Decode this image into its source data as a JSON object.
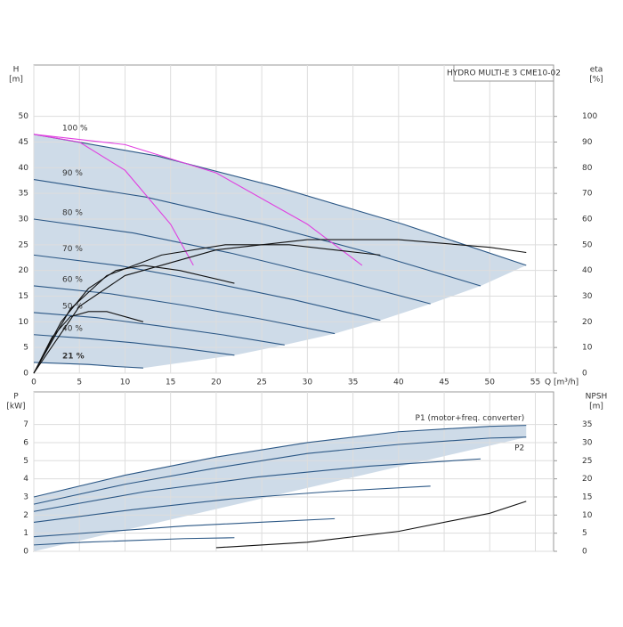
{
  "chart_data": [
    {
      "type": "line",
      "title": "HYDRO MULTI-E 3 CME10-02",
      "ylabel": "H",
      "yunit": "[m]",
      "y2label": "eta",
      "y2unit": "[%]",
      "xlabel": "Q [m³/h]",
      "xlim": [
        0,
        57
      ],
      "xticks": [
        0,
        5,
        10,
        15,
        20,
        25,
        30,
        35,
        40,
        45,
        50,
        55
      ],
      "ylim": [
        0,
        60
      ],
      "yticks": [
        0,
        5,
        10,
        15,
        20,
        25,
        30,
        35,
        40,
        45,
        50
      ],
      "y2lim": [
        0,
        120
      ],
      "y2ticks": [
        0,
        10,
        20,
        30,
        40,
        50,
        60,
        70,
        80,
        90,
        100
      ],
      "grid": true,
      "shade": "#c9d7e5",
      "series": [
        {
          "name": "100 %",
          "color": "#2b5785",
          "x": [
            0,
            13.5,
            27,
            40.5,
            54
          ],
          "values": [
            46.5,
            42.3,
            36.1,
            29.0,
            21
          ]
        },
        {
          "name": "90 %",
          "color": "#2b5785",
          "x": [
            0,
            12.25,
            24.5,
            36.75,
            49
          ],
          "values": [
            37.7,
            34.3,
            29.3,
            23.5,
            17
          ]
        },
        {
          "name": "80 %",
          "color": "#2b5785",
          "x": [
            0,
            10.9,
            21.8,
            32.6,
            43.5
          ],
          "values": [
            30,
            27.3,
            23.3,
            18.6,
            13.5
          ]
        },
        {
          "name": "70 %",
          "color": "#2b5785",
          "x": [
            0,
            9.5,
            19,
            28.5,
            38
          ],
          "values": [
            23,
            20.9,
            17.8,
            14.3,
            10.3
          ]
        },
        {
          "name": "60 %",
          "color": "#2b5785",
          "x": [
            0,
            8.25,
            16.5,
            24.75,
            33
          ],
          "values": [
            17,
            15.5,
            13.2,
            10.6,
            7.7
          ]
        },
        {
          "name": "50 %",
          "color": "#2b5785",
          "x": [
            0,
            6.9,
            13.75,
            20.6,
            27.5
          ],
          "values": [
            11.8,
            10.8,
            9.2,
            7.5,
            5.5
          ]
        },
        {
          "name": "40 %",
          "color": "#2b5785",
          "x": [
            0,
            5.5,
            11,
            16.5,
            22
          ],
          "values": [
            7.5,
            6.8,
            5.9,
            4.8,
            3.5
          ]
        },
        {
          "name": "21 %",
          "color": "#2b5785",
          "x": [
            0,
            3,
            6,
            9,
            12
          ],
          "values": [
            2.1,
            1.9,
            1.7,
            1.3,
            1
          ]
        },
        {
          "color": "#e040e0",
          "x": [
            0,
            5,
            10,
            15,
            17.5
          ],
          "values": [
            46.5,
            45,
            39.5,
            29,
            21
          ]
        },
        {
          "color": "#e040e0",
          "x": [
            0,
            10,
            20,
            30,
            36
          ],
          "values": [
            46.5,
            44.5,
            39,
            29,
            21
          ]
        },
        {
          "color": "#111111",
          "axis": "y2",
          "x": [
            0,
            5,
            10,
            20,
            30,
            40,
            50,
            54
          ],
          "values": [
            0,
            26,
            38,
            48,
            52,
            52,
            49,
            47
          ]
        },
        {
          "color": "#111111",
          "axis": "y2",
          "x": [
            0,
            4,
            8,
            14,
            21,
            28,
            38
          ],
          "values": [
            0,
            25,
            38,
            46,
            50,
            50,
            46
          ]
        },
        {
          "color": "#111111",
          "axis": "y2",
          "x": [
            0,
            3,
            6,
            9,
            12,
            16,
            22
          ],
          "values": [
            0,
            20,
            33,
            40,
            42,
            40,
            35
          ]
        },
        {
          "color": "#111111",
          "axis": "y2",
          "x": [
            0,
            2,
            4,
            6,
            8,
            10,
            12
          ],
          "values": [
            0,
            14,
            22,
            24,
            24,
            22,
            20
          ]
        }
      ]
    },
    {
      "type": "line",
      "ylabel": "P",
      "yunit": "[kW]",
      "y2label": "NPSH",
      "y2unit": "[m]",
      "xlim": [
        0,
        57
      ],
      "xticks": [
        0,
        5,
        10,
        15,
        20,
        25,
        30,
        35,
        40,
        45,
        50,
        55
      ],
      "ylim": [
        0,
        8.8
      ],
      "yticks": [
        0,
        1,
        2,
        3,
        4,
        5,
        6,
        7
      ],
      "y2lim": [
        0,
        44
      ],
      "y2ticks": [
        0,
        5,
        10,
        15,
        20,
        25,
        30,
        35
      ],
      "grid": true,
      "shade": "#c9d7e5",
      "series": [
        {
          "name": "P1 (motor+freq. converter)",
          "color": "#2b5785",
          "x": [
            0,
            10,
            20,
            30,
            40,
            50,
            54
          ],
          "values": [
            3.0,
            4.2,
            5.2,
            6.0,
            6.6,
            6.9,
            6.95
          ]
        },
        {
          "name": "P2",
          "color": "#2b5785",
          "x": [
            0,
            10,
            20,
            30,
            40,
            50,
            54
          ],
          "values": [
            2.6,
            3.7,
            4.6,
            5.4,
            5.9,
            6.25,
            6.3
          ]
        },
        {
          "color": "#2b5785",
          "x": [
            0,
            12.25,
            24.5,
            36.75,
            49
          ],
          "values": [
            2.2,
            3.3,
            4.1,
            4.7,
            5.1
          ]
        },
        {
          "color": "#2b5785",
          "x": [
            0,
            10.9,
            21.8,
            32.6,
            43.5
          ],
          "values": [
            1.6,
            2.3,
            2.9,
            3.3,
            3.6
          ]
        },
        {
          "color": "#2b5785",
          "x": [
            0,
            8.25,
            16.5,
            24.75,
            33
          ],
          "values": [
            0.8,
            1.1,
            1.4,
            1.6,
            1.8
          ]
        },
        {
          "color": "#2b5785",
          "x": [
            0,
            5.5,
            11,
            16.5,
            22
          ],
          "values": [
            0.35,
            0.5,
            0.6,
            0.7,
            0.75
          ]
        },
        {
          "color": "#111111",
          "axis": "y2",
          "x": [
            20,
            30,
            40,
            50,
            54
          ],
          "values": [
            1,
            2.5,
            5.5,
            10.5,
            13.8
          ]
        }
      ]
    }
  ]
}
